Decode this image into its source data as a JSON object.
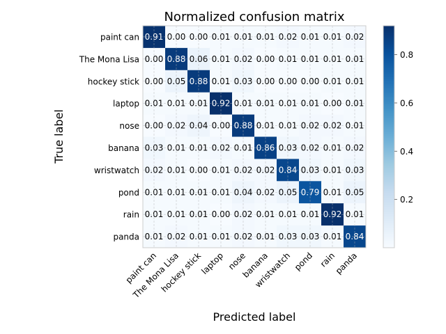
{
  "chart_data": {
    "type": "heatmap",
    "title": "Normalized confusion matrix",
    "xlabel": "Predicted label",
    "ylabel": "True label",
    "labels": [
      "paint can",
      "The Mona Lisa",
      "hockey stick",
      "laptop",
      "nose",
      "banana",
      "wristwatch",
      "pond",
      "rain",
      "panda"
    ],
    "matrix": [
      [
        0.91,
        0.0,
        0.0,
        0.01,
        0.01,
        0.01,
        0.02,
        0.01,
        0.01,
        0.02
      ],
      [
        0.0,
        0.88,
        0.06,
        0.01,
        0.02,
        0.0,
        0.01,
        0.01,
        0.01,
        0.01
      ],
      [
        0.0,
        0.05,
        0.88,
        0.01,
        0.03,
        0.0,
        0.0,
        0.0,
        0.01,
        0.01
      ],
      [
        0.01,
        0.01,
        0.01,
        0.92,
        0.01,
        0.01,
        0.01,
        0.01,
        0.0,
        0.01
      ],
      [
        0.0,
        0.02,
        0.04,
        0.0,
        0.88,
        0.01,
        0.01,
        0.02,
        0.02,
        0.01
      ],
      [
        0.03,
        0.01,
        0.01,
        0.02,
        0.01,
        0.86,
        0.03,
        0.02,
        0.01,
        0.02
      ],
      [
        0.02,
        0.01,
        0.0,
        0.01,
        0.02,
        0.02,
        0.84,
        0.03,
        0.01,
        0.03
      ],
      [
        0.01,
        0.01,
        0.01,
        0.01,
        0.04,
        0.02,
        0.05,
        0.79,
        0.01,
        0.05
      ],
      [
        0.01,
        0.01,
        0.01,
        0.0,
        0.02,
        0.01,
        0.01,
        0.01,
        0.92,
        0.01
      ],
      [
        0.01,
        0.02,
        0.01,
        0.01,
        0.02,
        0.01,
        0.03,
        0.03,
        0.01,
        0.84
      ]
    ],
    "colorbar": {
      "ticks": [
        0.2,
        0.4,
        0.6,
        0.8
      ],
      "tick_labels": [
        "0.2",
        "0.4",
        "0.6",
        "0.8"
      ],
      "range": [
        0.0,
        0.92
      ]
    },
    "colormap": "Blues",
    "grid": true,
    "legend": "colorbar-right"
  }
}
